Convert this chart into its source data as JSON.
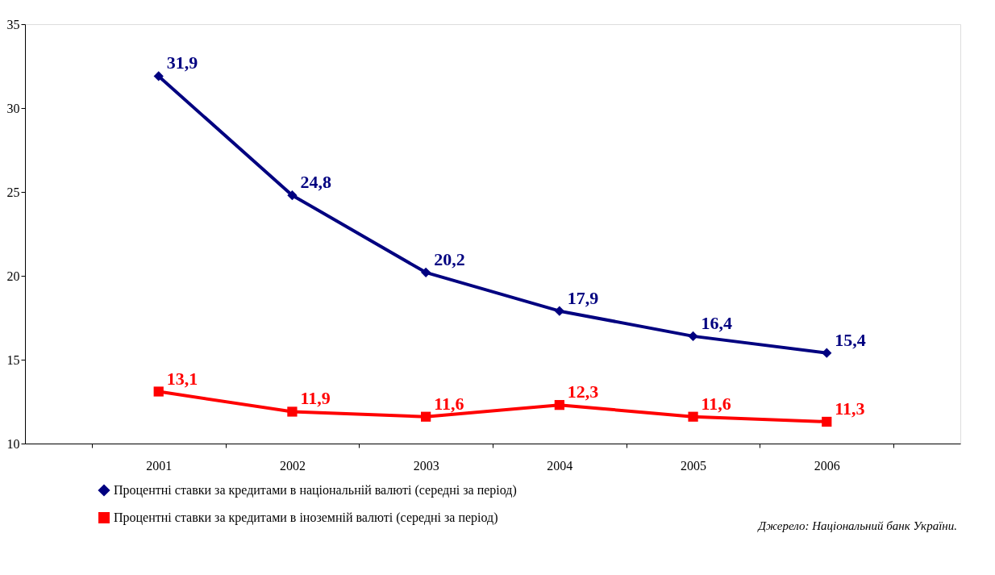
{
  "chart_data": {
    "type": "line",
    "categories": [
      "2001",
      "2002",
      "2003",
      "2004",
      "2005",
      "2006"
    ],
    "series": [
      {
        "name": "Процентні ставки за кредитами в національній валюті (середні за період)",
        "color": "#000080",
        "marker": "diamond",
        "values": [
          31.9,
          24.8,
          20.2,
          17.9,
          16.4,
          15.4
        ]
      },
      {
        "name": "Процентні ставки за кредитами в іноземній валюті (середні за період)",
        "color": "#ff0000",
        "marker": "square",
        "values": [
          13.1,
          11.9,
          11.6,
          12.3,
          11.6,
          11.3
        ]
      }
    ],
    "value_labels": [
      [
        "31,9",
        "24,8",
        "20,2",
        "17,9",
        "16,4",
        "15,4"
      ],
      [
        "13,1",
        "11,9",
        "11,6",
        "12,3",
        "11,6",
        "11,3"
      ]
    ],
    "ylim": [
      10,
      35
    ],
    "yticks": [
      10,
      15,
      20,
      25,
      30,
      35
    ],
    "grid": false,
    "legend": "bottom left",
    "line_style": "solid",
    "annotations": [
      "Джерело: Національний банк України."
    ]
  }
}
